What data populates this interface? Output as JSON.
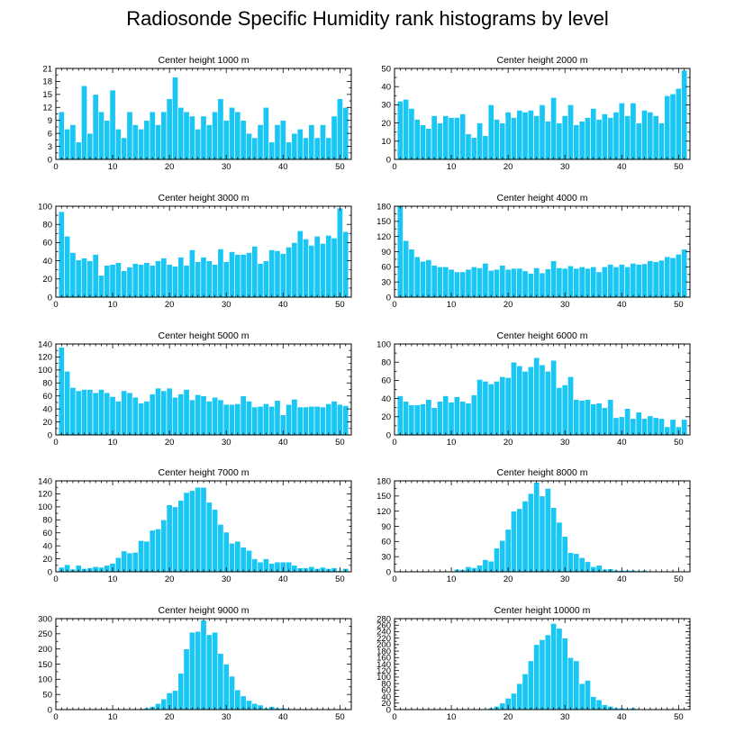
{
  "figure_title": "Radiosonde Specific Humidity rank histograms by level",
  "colors": {
    "bar": "#19c6f4",
    "bar_edge": "#ffffff",
    "axis": "#000000"
  },
  "chart_data": [
    {
      "type": "bar",
      "title": "Center height 1000 m",
      "xlabel": "",
      "ylabel": "",
      "xlim": [
        0,
        52
      ],
      "ylim": [
        0,
        21
      ],
      "xticks": [
        0,
        10,
        20,
        30,
        40,
        50
      ],
      "yticks": [
        0,
        3,
        6,
        9,
        12,
        15,
        18,
        21
      ],
      "x": [
        1,
        2,
        3,
        4,
        5,
        6,
        7,
        8,
        9,
        10,
        11,
        12,
        13,
        14,
        15,
        16,
        17,
        18,
        19,
        20,
        21,
        22,
        23,
        24,
        25,
        26,
        27,
        28,
        29,
        30,
        31,
        32,
        33,
        34,
        35,
        36,
        37,
        38,
        39,
        40,
        41,
        42,
        43,
        44,
        45,
        46,
        47,
        48,
        49,
        50,
        51
      ],
      "values": [
        11,
        7,
        8,
        4,
        17,
        6,
        15,
        11,
        9,
        16,
        7,
        5,
        11,
        8,
        7,
        9,
        11,
        8,
        11,
        14,
        19,
        12,
        11,
        10,
        7,
        10,
        8,
        11,
        14,
        9,
        12,
        11,
        9,
        6,
        5,
        8,
        12,
        4,
        8,
        9,
        4,
        6,
        7,
        5,
        8,
        5,
        8,
        5,
        10,
        14,
        12
      ]
    },
    {
      "type": "bar",
      "title": "Center height 2000 m",
      "xlabel": "",
      "ylabel": "",
      "xlim": [
        0,
        52
      ],
      "ylim": [
        0,
        50
      ],
      "xticks": [
        0,
        10,
        20,
        30,
        40,
        50
      ],
      "yticks": [
        0,
        10,
        20,
        30,
        40,
        50
      ],
      "x": [
        1,
        2,
        3,
        4,
        5,
        6,
        7,
        8,
        9,
        10,
        11,
        12,
        13,
        14,
        15,
        16,
        17,
        18,
        19,
        20,
        21,
        22,
        23,
        24,
        25,
        26,
        27,
        28,
        29,
        30,
        31,
        32,
        33,
        34,
        35,
        36,
        37,
        38,
        39,
        40,
        41,
        42,
        43,
        44,
        45,
        46,
        47,
        48,
        49,
        50,
        51
      ],
      "values": [
        32,
        33,
        28,
        22,
        19,
        17,
        24,
        20,
        24,
        23,
        23,
        25,
        14,
        12,
        20,
        13,
        30,
        22,
        20,
        26,
        23,
        27,
        26,
        27,
        24,
        30,
        21,
        34,
        20,
        24,
        30,
        19,
        21,
        23,
        28,
        22,
        25,
        23,
        26,
        31,
        24,
        31,
        20,
        27,
        26,
        24,
        20,
        35,
        36,
        39,
        49
      ]
    },
    {
      "type": "bar",
      "title": "Center height 3000 m",
      "xlabel": "",
      "ylabel": "",
      "xlim": [
        0,
        52
      ],
      "ylim": [
        0,
        100
      ],
      "xticks": [
        0,
        10,
        20,
        30,
        40,
        50
      ],
      "yticks": [
        0,
        20,
        40,
        60,
        80,
        100
      ],
      "x": [
        1,
        2,
        3,
        4,
        5,
        6,
        7,
        8,
        9,
        10,
        11,
        12,
        13,
        14,
        15,
        16,
        17,
        18,
        19,
        20,
        21,
        22,
        23,
        24,
        25,
        26,
        27,
        28,
        29,
        30,
        31,
        32,
        33,
        34,
        35,
        36,
        37,
        38,
        39,
        40,
        41,
        42,
        43,
        44,
        45,
        46,
        47,
        48,
        49,
        50,
        51
      ],
      "values": [
        94,
        67,
        49,
        41,
        43,
        40,
        47,
        24,
        35,
        36,
        38,
        29,
        33,
        37,
        36,
        38,
        35,
        40,
        43,
        36,
        34,
        44,
        35,
        52,
        39,
        44,
        40,
        36,
        53,
        39,
        50,
        47,
        47,
        49,
        56,
        37,
        40,
        52,
        51,
        48,
        55,
        60,
        73,
        64,
        57,
        67,
        59,
        68,
        65,
        98,
        72
      ]
    },
    {
      "type": "bar",
      "title": "Center height 4000 m",
      "xlabel": "",
      "ylabel": "",
      "xlim": [
        0,
        52
      ],
      "ylim": [
        0,
        180
      ],
      "xticks": [
        0,
        10,
        20,
        30,
        40,
        50
      ],
      "yticks": [
        0,
        30,
        60,
        90,
        120,
        150,
        180
      ],
      "x": [
        1,
        2,
        3,
        4,
        5,
        6,
        7,
        8,
        9,
        10,
        11,
        12,
        13,
        14,
        15,
        16,
        17,
        18,
        19,
        20,
        21,
        22,
        23,
        24,
        25,
        26,
        27,
        28,
        29,
        30,
        31,
        32,
        33,
        34,
        35,
        36,
        37,
        38,
        39,
        40,
        41,
        42,
        43,
        44,
        45,
        46,
        47,
        48,
        49,
        50,
        51
      ],
      "values": [
        180,
        112,
        95,
        80,
        71,
        74,
        63,
        60,
        60,
        55,
        50,
        50,
        55,
        60,
        58,
        67,
        53,
        55,
        63,
        55,
        57,
        57,
        52,
        47,
        58,
        48,
        56,
        72,
        58,
        57,
        62,
        57,
        60,
        57,
        60,
        50,
        60,
        65,
        60,
        65,
        60,
        67,
        65,
        66,
        72,
        70,
        73,
        80,
        78,
        85,
        95
      ]
    },
    {
      "type": "bar",
      "title": "Center height 5000 m",
      "xlabel": "",
      "ylabel": "",
      "xlim": [
        0,
        52
      ],
      "ylim": [
        0,
        140
      ],
      "xticks": [
        0,
        10,
        20,
        30,
        40,
        50
      ],
      "yticks": [
        0,
        20,
        40,
        60,
        80,
        100,
        120,
        140
      ],
      "x": [
        1,
        2,
        3,
        4,
        5,
        6,
        7,
        8,
        9,
        10,
        11,
        12,
        13,
        14,
        15,
        16,
        17,
        18,
        19,
        20,
        21,
        22,
        23,
        24,
        25,
        26,
        27,
        28,
        29,
        30,
        31,
        32,
        33,
        34,
        35,
        36,
        37,
        38,
        39,
        40,
        41,
        42,
        43,
        44,
        45,
        46,
        47,
        48,
        49,
        50,
        51
      ],
      "values": [
        135,
        98,
        73,
        68,
        70,
        70,
        65,
        70,
        65,
        59,
        52,
        68,
        65,
        58,
        49,
        52,
        63,
        72,
        68,
        72,
        58,
        63,
        70,
        54,
        62,
        60,
        52,
        58,
        54,
        47,
        47,
        48,
        60,
        52,
        43,
        44,
        48,
        44,
        53,
        31,
        47,
        55,
        43,
        43,
        44,
        44,
        43,
        48,
        52,
        47,
        45
      ]
    },
    {
      "type": "bar",
      "title": "Center height 6000 m",
      "xlabel": "",
      "ylabel": "",
      "xlim": [
        0,
        52
      ],
      "ylim": [
        0,
        100
      ],
      "xticks": [
        0,
        10,
        20,
        30,
        40,
        50
      ],
      "yticks": [
        0,
        20,
        40,
        60,
        80,
        100
      ],
      "x": [
        1,
        2,
        3,
        4,
        5,
        6,
        7,
        8,
        9,
        10,
        11,
        12,
        13,
        14,
        15,
        16,
        17,
        18,
        19,
        20,
        21,
        22,
        23,
        24,
        25,
        26,
        27,
        28,
        29,
        30,
        31,
        32,
        33,
        34,
        35,
        36,
        37,
        38,
        39,
        40,
        41,
        42,
        43,
        44,
        45,
        46,
        47,
        48,
        49,
        50,
        51
      ],
      "values": [
        43,
        37,
        33,
        33,
        34,
        39,
        30,
        37,
        43,
        36,
        42,
        37,
        35,
        44,
        61,
        59,
        56,
        59,
        64,
        63,
        80,
        76,
        70,
        75,
        85,
        77,
        70,
        82,
        52,
        55,
        64,
        39,
        38,
        39,
        34,
        35,
        30,
        39,
        19,
        20,
        29,
        18,
        25,
        18,
        21,
        19,
        18,
        9,
        17,
        9,
        17
      ]
    },
    {
      "type": "bar",
      "title": "Center height 7000 m",
      "xlabel": "",
      "ylabel": "",
      "xlim": [
        0,
        52
      ],
      "ylim": [
        0,
        140
      ],
      "xticks": [
        0,
        10,
        20,
        30,
        40,
        50
      ],
      "yticks": [
        0,
        20,
        40,
        60,
        80,
        100,
        120,
        140
      ],
      "x": [
        1,
        2,
        3,
        4,
        5,
        6,
        7,
        8,
        9,
        10,
        11,
        12,
        13,
        14,
        15,
        16,
        17,
        18,
        19,
        20,
        21,
        22,
        23,
        24,
        25,
        26,
        27,
        28,
        29,
        30,
        31,
        32,
        33,
        34,
        35,
        36,
        37,
        38,
        39,
        40,
        41,
        42,
        43,
        44,
        45,
        46,
        47,
        48,
        49,
        50,
        51
      ],
      "values": [
        7,
        11,
        4,
        10,
        5,
        6,
        8,
        7,
        10,
        13,
        22,
        32,
        29,
        30,
        48,
        47,
        64,
        66,
        80,
        103,
        100,
        110,
        122,
        125,
        130,
        130,
        107,
        96,
        73,
        61,
        44,
        47,
        38,
        33,
        20,
        15,
        20,
        13,
        15,
        15,
        15,
        10,
        6,
        6,
        8,
        5,
        7,
        5,
        6,
        2,
        5
      ]
    },
    {
      "type": "bar",
      "title": "Center height 8000 m",
      "xlabel": "",
      "ylabel": "",
      "xlim": [
        0,
        52
      ],
      "ylim": [
        0,
        180
      ],
      "xticks": [
        0,
        10,
        20,
        30,
        40,
        50
      ],
      "yticks": [
        0,
        30,
        60,
        90,
        120,
        150,
        180
      ],
      "x": [
        1,
        2,
        3,
        4,
        5,
        6,
        7,
        8,
        9,
        10,
        11,
        12,
        13,
        14,
        15,
        16,
        17,
        18,
        19,
        20,
        21,
        22,
        23,
        24,
        25,
        26,
        27,
        28,
        29,
        30,
        31,
        32,
        33,
        34,
        35,
        36,
        37,
        38,
        39,
        40,
        41,
        42,
        43,
        44,
        45,
        46,
        47,
        48,
        49,
        50,
        51
      ],
      "values": [
        0,
        0,
        0,
        0,
        0,
        0,
        0,
        0,
        0,
        0,
        5,
        4,
        10,
        8,
        13,
        24,
        21,
        47,
        62,
        84,
        120,
        125,
        140,
        155,
        177,
        150,
        165,
        127,
        98,
        70,
        38,
        36,
        28,
        20,
        10,
        13,
        5,
        6,
        3,
        3,
        3,
        3,
        2,
        3,
        0,
        0,
        0,
        0,
        0,
        0,
        0
      ]
    },
    {
      "type": "bar",
      "title": "Center height 9000 m",
      "xlabel": "",
      "ylabel": "",
      "xlim": [
        0,
        52
      ],
      "ylim": [
        0,
        300
      ],
      "xticks": [
        0,
        10,
        20,
        30,
        40,
        50
      ],
      "yticks": [
        0,
        50,
        100,
        150,
        200,
        250,
        300
      ],
      "x": [
        1,
        2,
        3,
        4,
        5,
        6,
        7,
        8,
        9,
        10,
        11,
        12,
        13,
        14,
        15,
        16,
        17,
        18,
        19,
        20,
        21,
        22,
        23,
        24,
        25,
        26,
        27,
        28,
        29,
        30,
        31,
        32,
        33,
        34,
        35,
        36,
        37,
        38,
        39,
        40,
        41,
        42,
        43,
        44,
        45,
        46,
        47,
        48,
        49,
        50,
        51
      ],
      "values": [
        0,
        0,
        0,
        0,
        0,
        0,
        0,
        0,
        0,
        0,
        0,
        0,
        0,
        2,
        3,
        5,
        10,
        20,
        35,
        55,
        63,
        120,
        200,
        255,
        258,
        295,
        247,
        255,
        185,
        150,
        110,
        65,
        45,
        30,
        20,
        15,
        5,
        10,
        5,
        5,
        3,
        2,
        2,
        2,
        0,
        0,
        0,
        0,
        0,
        0,
        0
      ]
    },
    {
      "type": "bar",
      "title": "Center height 10000 m",
      "xlabel": "",
      "ylabel": "",
      "xlim": [
        0,
        52
      ],
      "ylim": [
        0,
        280
      ],
      "xticks": [
        0,
        10,
        20,
        30,
        40,
        50
      ],
      "yticks": [
        0,
        20,
        40,
        60,
        80,
        100,
        120,
        140,
        160,
        180,
        200,
        220,
        240,
        260,
        280
      ],
      "x": [
        1,
        2,
        3,
        4,
        5,
        6,
        7,
        8,
        9,
        10,
        11,
        12,
        13,
        14,
        15,
        16,
        17,
        18,
        19,
        20,
        21,
        22,
        23,
        24,
        25,
        26,
        27,
        28,
        29,
        30,
        31,
        32,
        33,
        34,
        35,
        36,
        37,
        38,
        39,
        40,
        41,
        42,
        43,
        44,
        45,
        46,
        47,
        48,
        49,
        50,
        51
      ],
      "values": [
        0,
        0,
        0,
        0,
        0,
        0,
        0,
        0,
        0,
        0,
        0,
        0,
        0,
        0,
        0,
        0,
        5,
        10,
        20,
        35,
        50,
        80,
        110,
        150,
        200,
        215,
        230,
        265,
        250,
        220,
        160,
        150,
        80,
        90,
        40,
        30,
        15,
        10,
        5,
        5,
        3,
        5,
        2,
        2,
        0,
        0,
        0,
        0,
        0,
        0,
        0
      ]
    }
  ]
}
